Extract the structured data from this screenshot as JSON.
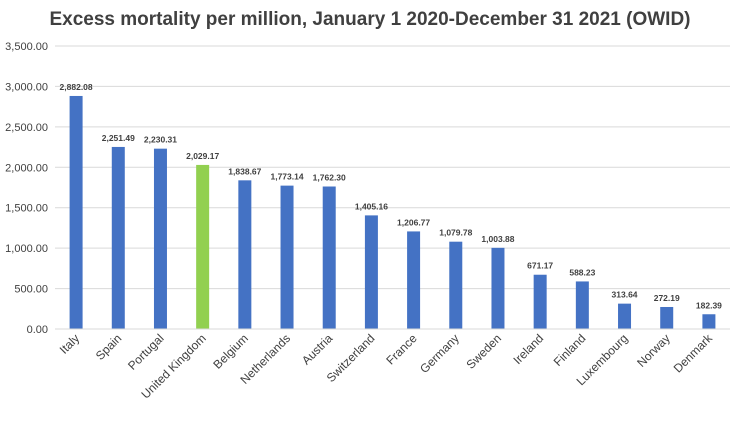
{
  "chart_data": {
    "type": "bar",
    "title": "Excess mortality per million, January 1 2020-December 31 2021 (OWID)",
    "categories": [
      "Italy",
      "Spain",
      "Portugal",
      "United Kingdom",
      "Belgium",
      "Netherlands",
      "Austria",
      "Switzerland",
      "France",
      "Germany",
      "Sweden",
      "Ireland",
      "Finland",
      "Luxembourg",
      "Norway",
      "Denmark"
    ],
    "values": [
      2882.08,
      2251.49,
      2230.31,
      2029.17,
      1838.67,
      1773.14,
      1762.3,
      1405.16,
      1206.77,
      1079.78,
      1003.88,
      671.17,
      588.23,
      313.64,
      272.19,
      182.39
    ],
    "data_labels": [
      "2,882.08",
      "2,251.49",
      "2,230.31",
      "2,029.17",
      "1,838.67",
      "1,773.14",
      "1,762.30",
      "1,405.16",
      "1,206.77",
      "1,079.78",
      "1,003.88",
      "671.17",
      "588.23",
      "313.64",
      "272.19",
      "182.39"
    ],
    "yticks": [
      "0.00",
      "500.00",
      "1,000.00",
      "1,500.00",
      "2,000.00",
      "2,500.00",
      "3,000.00",
      "3,500.00"
    ],
    "ylim": [
      0,
      3500
    ],
    "xlabel": "",
    "ylabel": "",
    "grid": true,
    "legend": "none",
    "colors": {
      "default": "#4472c4",
      "highlight": "#92d050"
    },
    "highlight_category": "United Kingdom"
  }
}
